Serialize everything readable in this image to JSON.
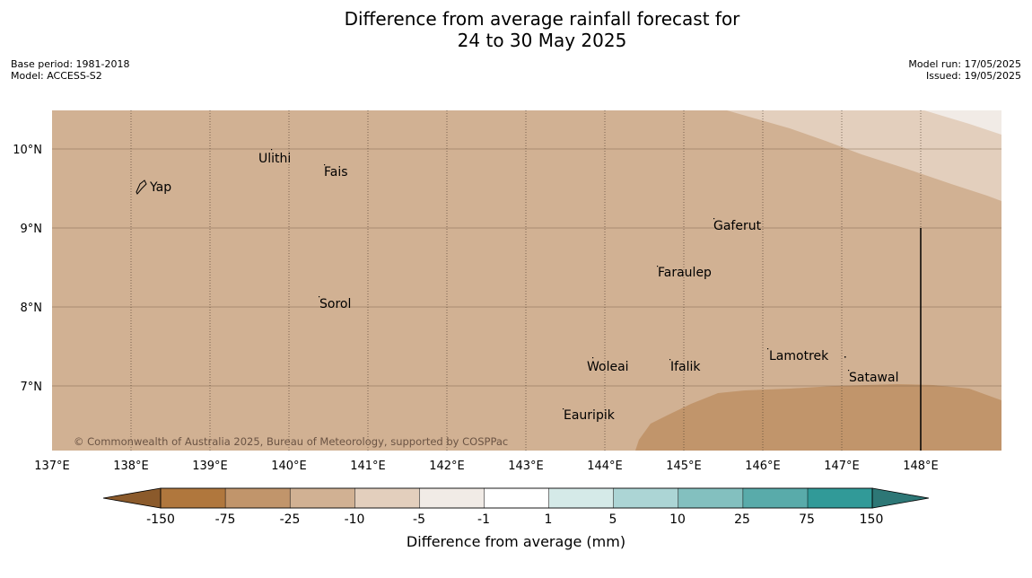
{
  "header": {
    "title_line1": "Difference from average rainfall forecast for",
    "title_line2": "24 to 30 May 2025",
    "base_period": "Base period: 1981-2018",
    "model": "Model: ACCESS-S2",
    "model_run": "Model run: 17/05/2025",
    "issued": "Issued: 19/05/2025"
  },
  "map": {
    "lon_ticks": [
      "137°E",
      "138°E",
      "139°E",
      "140°E",
      "141°E",
      "142°E",
      "143°E",
      "144°E",
      "145°E",
      "146°E",
      "147°E",
      "148°E"
    ],
    "lat_ticks": [
      "10°N",
      "9°N",
      "8°N",
      "7°N"
    ],
    "places": [
      {
        "name": "Yap"
      },
      {
        "name": "Ulithi"
      },
      {
        "name": "Fais"
      },
      {
        "name": "Gaferut"
      },
      {
        "name": "Faraulep"
      },
      {
        "name": "Sorol"
      },
      {
        "name": "Lamotrek"
      },
      {
        "name": "Woleai"
      },
      {
        "name": "Ifalik"
      },
      {
        "name": "Satawal"
      },
      {
        "name": "Eauripik"
      }
    ],
    "copyright": "© Commonwealth of Australia 2025, Bureau of Meteorology, supported by COSPPac",
    "fill_colors": {
      "minus25_to_minus10": "#d1b193",
      "minus75_to_minus25": "#c1956b",
      "minus10_to_minus5": "#e3cfbd",
      "minus5_to_minus1": "#f1ebe6"
    }
  },
  "colorbar": {
    "title": "Difference from average (mm)",
    "labels": [
      "-150",
      "-75",
      "-25",
      "-10",
      "-5",
      "-1",
      "1",
      "5",
      "10",
      "25",
      "75",
      "150"
    ],
    "colors": [
      "#8b5a2b",
      "#b0773d",
      "#c1956b",
      "#d1b193",
      "#e3cfbd",
      "#f1ebe6",
      "#ffffff",
      "#d5eae8",
      "#acd5d5",
      "#83c0bf",
      "#59abaa",
      "#319a98",
      "#2d7776"
    ]
  }
}
